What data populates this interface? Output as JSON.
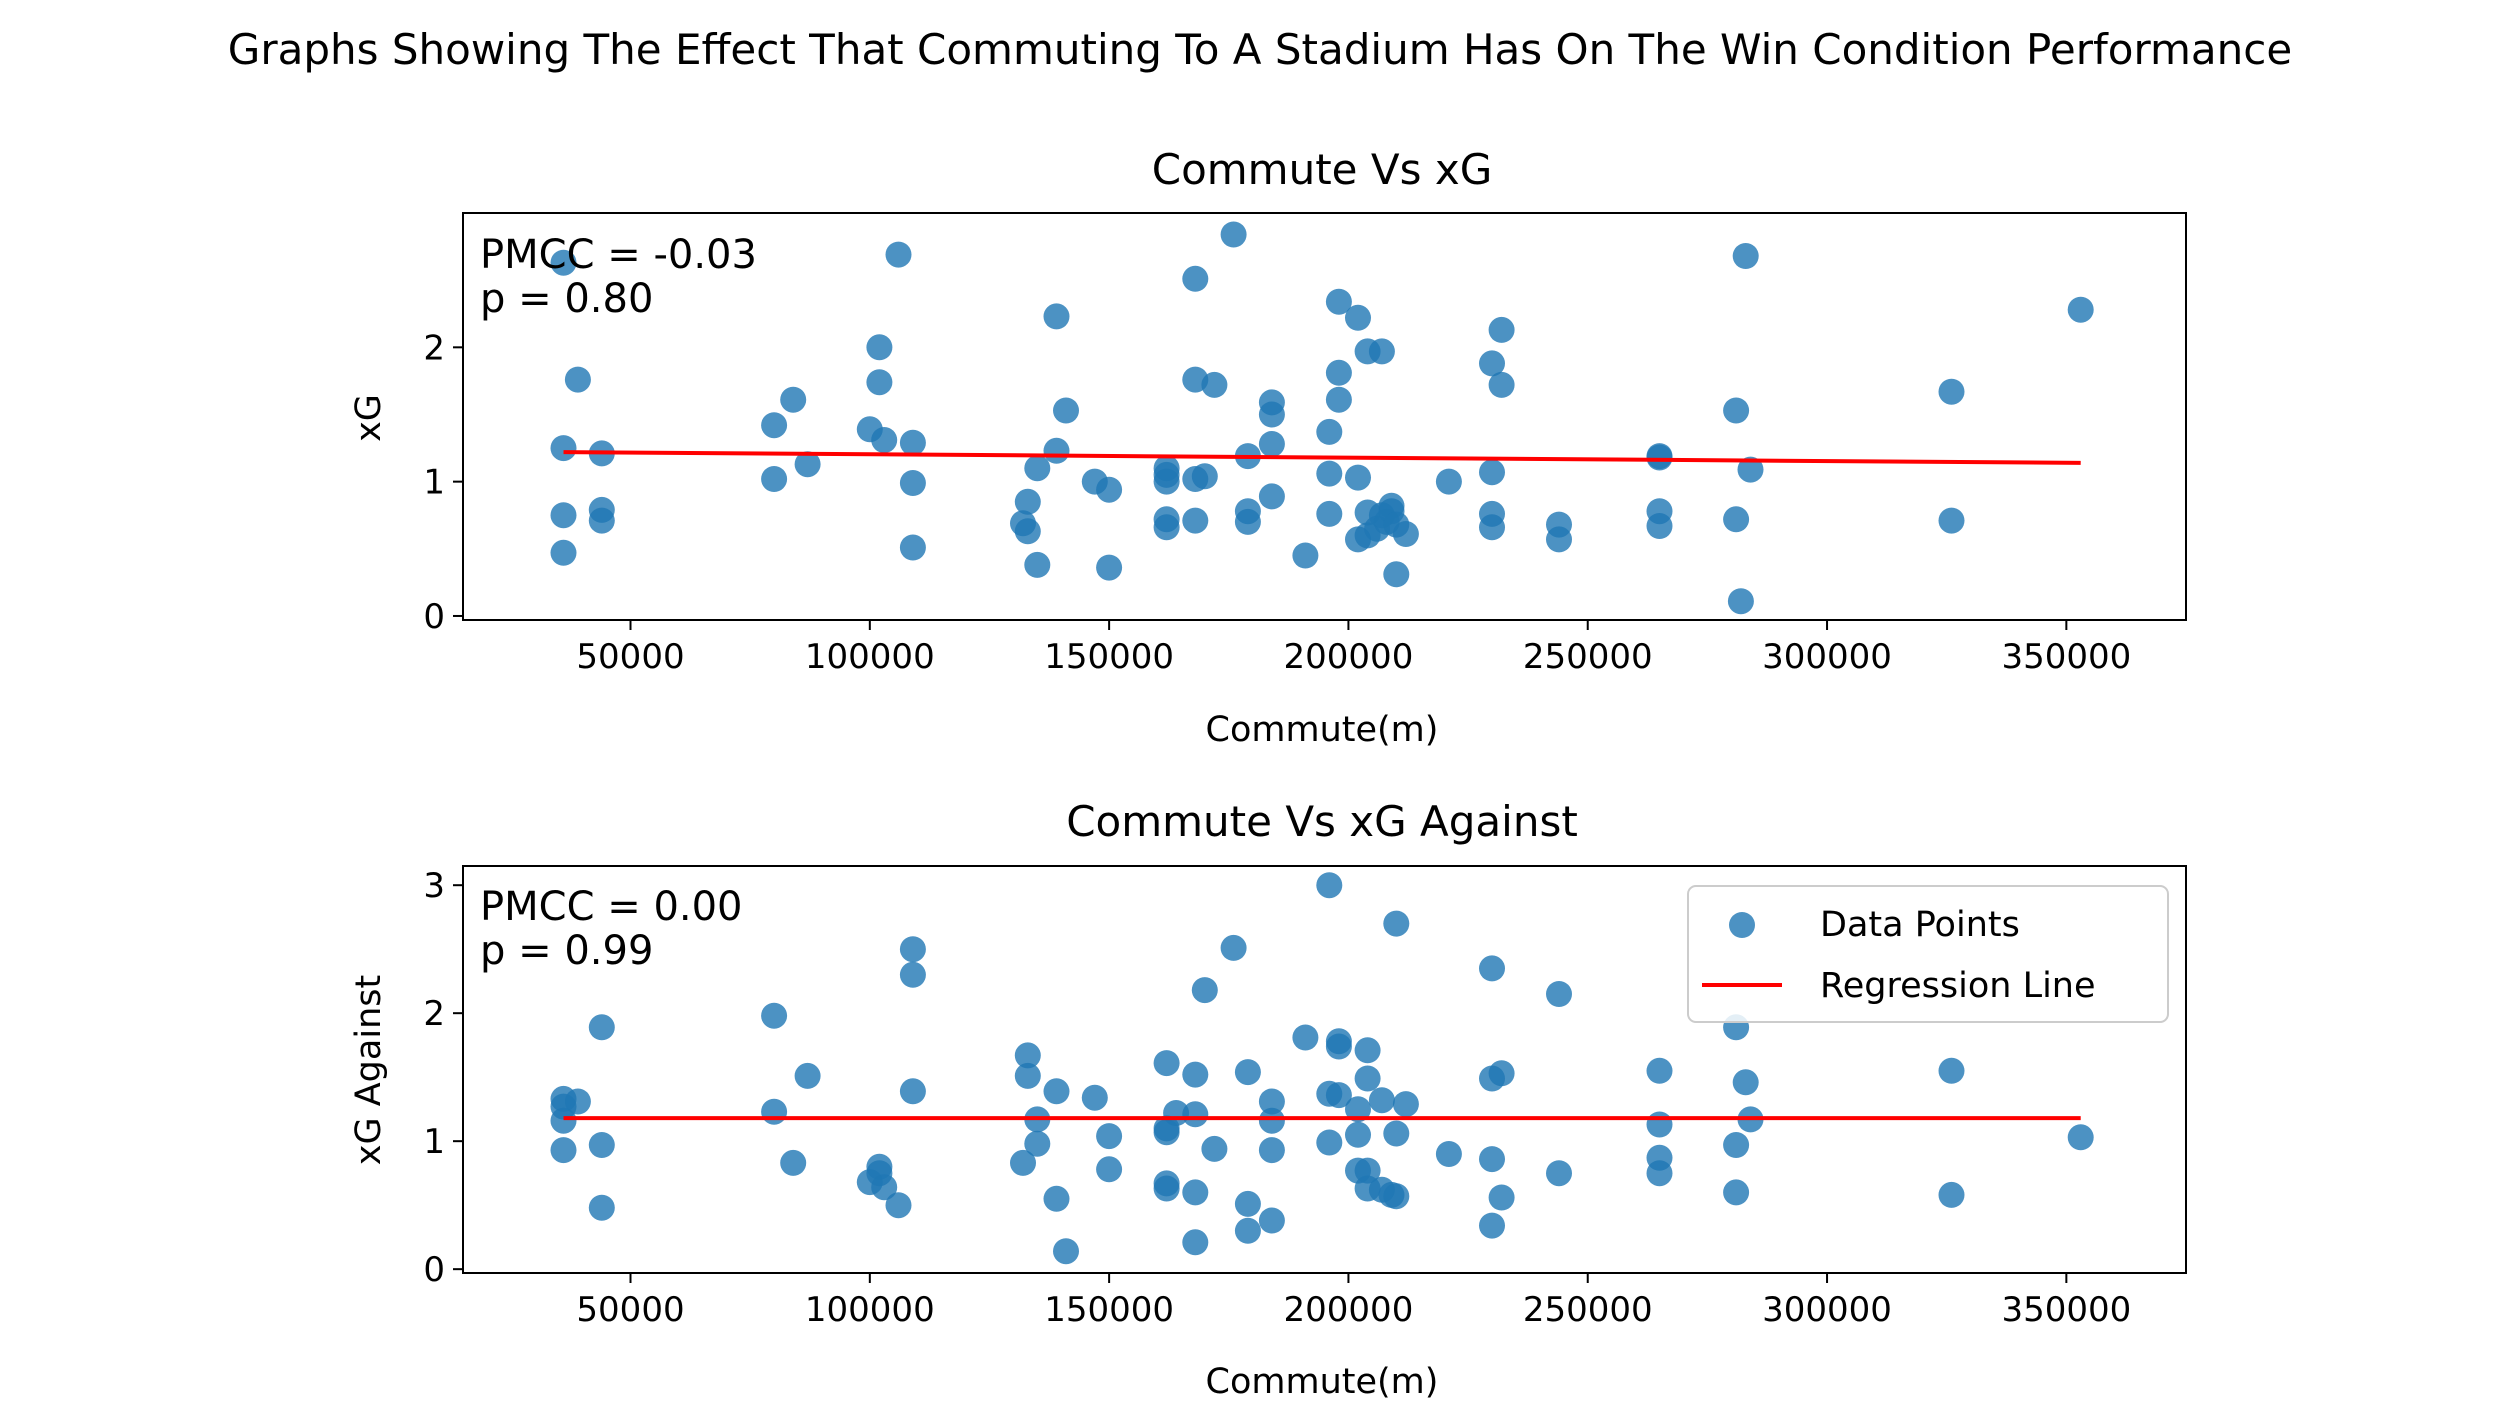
{
  "figure": {
    "title": "Graphs Showing The Effect That Commuting To A Stadium Has On The Win Condition Performance"
  },
  "legend": {
    "items": [
      "Data Points",
      "Regression Line"
    ],
    "placement": "upper right of second plot"
  },
  "colors": {
    "points": "#1f77b4",
    "regression": "#ff0000"
  },
  "chart_data": [
    {
      "type": "scatter",
      "title": "Commute Vs xG",
      "xlabel": "Commute(m)",
      "ylabel": "xG",
      "xlim": [
        15000,
        375000
      ],
      "ylim": [
        -0.03,
        3.0
      ],
      "xticks": [
        50000,
        100000,
        150000,
        200000,
        250000,
        300000,
        350000
      ],
      "yticks": [
        0,
        1,
        2
      ],
      "annotation": {
        "line1": "PMCC = -0.03",
        "line2": "p =  0.80"
      },
      "regression": {
        "x": [
          36000,
          353000
        ],
        "y": [
          1.22,
          1.14
        ]
      },
      "points": [
        [
          36000,
          2.63
        ],
        [
          36000,
          1.25
        ],
        [
          36000,
          0.75
        ],
        [
          36000,
          0.47
        ],
        [
          39000,
          1.76
        ],
        [
          44000,
          1.21
        ],
        [
          44000,
          0.79
        ],
        [
          44000,
          0.71
        ],
        [
          80000,
          1.42
        ],
        [
          80000,
          1.02
        ],
        [
          84000,
          1.61
        ],
        [
          87000,
          1.13
        ],
        [
          100000,
          1.39
        ],
        [
          102000,
          2.0
        ],
        [
          102000,
          1.74
        ],
        [
          103000,
          1.31
        ],
        [
          106000,
          2.69
        ],
        [
          109000,
          1.29
        ],
        [
          109000,
          0.99
        ],
        [
          109000,
          0.51
        ],
        [
          132000,
          0.69
        ],
        [
          133000,
          0.85
        ],
        [
          133000,
          0.63
        ],
        [
          135000,
          1.1
        ],
        [
          135000,
          0.38
        ],
        [
          139000,
          2.23
        ],
        [
          139000,
          1.23
        ],
        [
          141000,
          1.53
        ],
        [
          147000,
          1.0
        ],
        [
          150000,
          0.94
        ],
        [
          150000,
          0.36
        ],
        [
          162000,
          1.1
        ],
        [
          162000,
          1.05
        ],
        [
          162000,
          1.0
        ],
        [
          162000,
          0.72
        ],
        [
          162000,
          0.66
        ],
        [
          168000,
          2.51
        ],
        [
          168000,
          1.76
        ],
        [
          168000,
          1.02
        ],
        [
          168000,
          0.71
        ],
        [
          170000,
          1.04
        ],
        [
          172000,
          1.72
        ],
        [
          176000,
          2.84
        ],
        [
          179000,
          1.19
        ],
        [
          179000,
          0.78
        ],
        [
          179000,
          0.7
        ],
        [
          184000,
          1.59
        ],
        [
          184000,
          1.5
        ],
        [
          184000,
          1.28
        ],
        [
          184000,
          0.89
        ],
        [
          191000,
          0.45
        ],
        [
          196000,
          1.37
        ],
        [
          196000,
          1.06
        ],
        [
          196000,
          0.76
        ],
        [
          198000,
          2.34
        ],
        [
          198000,
          1.81
        ],
        [
          198000,
          1.61
        ],
        [
          202000,
          2.22
        ],
        [
          202000,
          1.03
        ],
        [
          202000,
          0.57
        ],
        [
          204000,
          1.97
        ],
        [
          204000,
          0.77
        ],
        [
          204000,
          0.6
        ],
        [
          206000,
          0.65
        ],
        [
          207000,
          1.97
        ],
        [
          207000,
          0.75
        ],
        [
          208000,
          0.7
        ],
        [
          209000,
          0.82
        ],
        [
          209000,
          0.78
        ],
        [
          210000,
          0.31
        ],
        [
          210000,
          0.68
        ],
        [
          212000,
          0.61
        ],
        [
          221000,
          1.0
        ],
        [
          230000,
          1.88
        ],
        [
          230000,
          1.07
        ],
        [
          230000,
          0.76
        ],
        [
          230000,
          0.66
        ],
        [
          232000,
          2.13
        ],
        [
          232000,
          1.72
        ],
        [
          244000,
          0.68
        ],
        [
          244000,
          0.57
        ],
        [
          265000,
          1.19
        ],
        [
          265000,
          1.18
        ],
        [
          265000,
          0.78
        ],
        [
          265000,
          0.67
        ],
        [
          281000,
          1.53
        ],
        [
          281000,
          0.72
        ],
        [
          282000,
          0.11
        ],
        [
          283000,
          2.68
        ],
        [
          284000,
          1.09
        ],
        [
          326000,
          1.67
        ],
        [
          326000,
          0.71
        ],
        [
          353000,
          2.28
        ]
      ]
    },
    {
      "type": "scatter",
      "title": "Commute Vs xG Against",
      "xlabel": "Commute(m)",
      "ylabel": "xG Against",
      "xlim": [
        15000,
        375000
      ],
      "ylim": [
        -0.03,
        3.15
      ],
      "xticks": [
        50000,
        100000,
        150000,
        200000,
        250000,
        300000,
        350000
      ],
      "yticks": [
        0,
        1,
        2,
        3
      ],
      "annotation": {
        "line1": "PMCC =  0.00",
        "line2": "p =  0.99"
      },
      "regression": {
        "x": [
          36000,
          353000
        ],
        "y": [
          1.18,
          1.18
        ]
      },
      "points": [
        [
          36000,
          1.33
        ],
        [
          36000,
          1.27
        ],
        [
          36000,
          1.16
        ],
        [
          36000,
          0.93
        ],
        [
          39000,
          1.31
        ],
        [
          44000,
          1.89
        ],
        [
          44000,
          0.97
        ],
        [
          44000,
          0.48
        ],
        [
          80000,
          1.98
        ],
        [
          80000,
          1.23
        ],
        [
          84000,
          0.83
        ],
        [
          87000,
          1.51
        ],
        [
          100000,
          0.68
        ],
        [
          102000,
          0.8
        ],
        [
          102000,
          0.75
        ],
        [
          103000,
          0.64
        ],
        [
          106000,
          0.5
        ],
        [
          109000,
          2.5
        ],
        [
          109000,
          2.3
        ],
        [
          109000,
          1.39
        ],
        [
          132000,
          0.83
        ],
        [
          133000,
          1.67
        ],
        [
          133000,
          1.51
        ],
        [
          135000,
          1.17
        ],
        [
          135000,
          0.98
        ],
        [
          139000,
          1.39
        ],
        [
          139000,
          0.55
        ],
        [
          141000,
          0.14
        ],
        [
          147000,
          1.34
        ],
        [
          150000,
          1.04
        ],
        [
          150000,
          0.78
        ],
        [
          162000,
          1.61
        ],
        [
          162000,
          1.1
        ],
        [
          162000,
          1.07
        ],
        [
          162000,
          0.67
        ],
        [
          162000,
          0.63
        ],
        [
          164000,
          1.22
        ],
        [
          168000,
          1.52
        ],
        [
          168000,
          1.21
        ],
        [
          168000,
          0.6
        ],
        [
          168000,
          0.21
        ],
        [
          170000,
          2.18
        ],
        [
          172000,
          0.94
        ],
        [
          176000,
          2.51
        ],
        [
          179000,
          1.54
        ],
        [
          179000,
          0.51
        ],
        [
          179000,
          0.3
        ],
        [
          184000,
          1.31
        ],
        [
          184000,
          1.16
        ],
        [
          184000,
          0.93
        ],
        [
          184000,
          0.38
        ],
        [
          191000,
          1.81
        ],
        [
          196000,
          3.0
        ],
        [
          196000,
          1.37
        ],
        [
          196000,
          0.99
        ],
        [
          198000,
          1.78
        ],
        [
          198000,
          1.74
        ],
        [
          198000,
          1.36
        ],
        [
          202000,
          1.25
        ],
        [
          202000,
          1.05
        ],
        [
          202000,
          0.77
        ],
        [
          204000,
          1.71
        ],
        [
          204000,
          1.49
        ],
        [
          204000,
          0.77
        ],
        [
          204000,
          0.63
        ],
        [
          207000,
          1.32
        ],
        [
          207000,
          0.62
        ],
        [
          209000,
          0.58
        ],
        [
          210000,
          2.7
        ],
        [
          210000,
          1.06
        ],
        [
          210000,
          0.57
        ],
        [
          212000,
          1.29
        ],
        [
          221000,
          0.9
        ],
        [
          230000,
          2.35
        ],
        [
          230000,
          1.49
        ],
        [
          230000,
          0.86
        ],
        [
          230000,
          0.34
        ],
        [
          232000,
          1.53
        ],
        [
          232000,
          0.56
        ],
        [
          244000,
          2.15
        ],
        [
          244000,
          0.75
        ],
        [
          265000,
          1.55
        ],
        [
          265000,
          1.13
        ],
        [
          265000,
          0.87
        ],
        [
          265000,
          0.75
        ],
        [
          281000,
          1.89
        ],
        [
          281000,
          0.97
        ],
        [
          281000,
          0.6
        ],
        [
          283000,
          1.46
        ],
        [
          284000,
          1.17
        ],
        [
          326000,
          1.55
        ],
        [
          326000,
          0.58
        ],
        [
          353000,
          1.03
        ]
      ]
    }
  ]
}
